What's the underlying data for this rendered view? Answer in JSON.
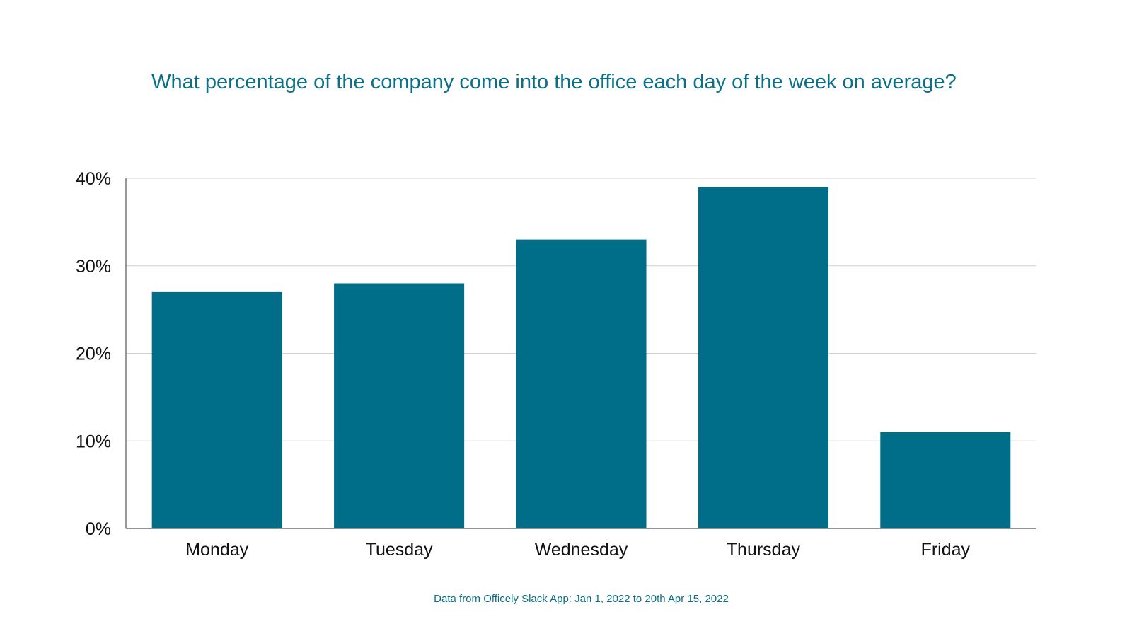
{
  "chart_data": {
    "type": "bar",
    "title": "What percentage of the company come into the office each day of the week on average?",
    "footnote": "Data from Officely Slack App: Jan 1, 2022 to 20th Apr 15, 2022",
    "categories": [
      "Monday",
      "Tuesday",
      "Wednesday",
      "Thursday",
      "Friday"
    ],
    "values": [
      27,
      28,
      33,
      39,
      11
    ],
    "unit": "%",
    "ylim": [
      0,
      40
    ],
    "yticks": [
      0,
      10,
      20,
      30,
      40
    ],
    "ytick_labels": [
      "0%",
      "10%",
      "20%",
      "30%",
      "40%"
    ],
    "xlabel": "",
    "ylabel": "",
    "grid": true,
    "bar_color": "#006d89",
    "title_color": "#0b6f85"
  }
}
